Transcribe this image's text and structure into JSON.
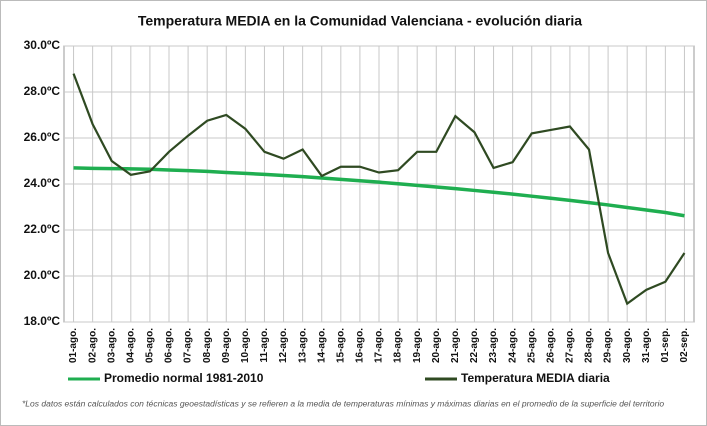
{
  "chart_data": {
    "type": "line",
    "title": "Temperatura  MEDIA en la Comunidad Valenciana - evolución diaria",
    "categories": [
      "01-ago.",
      "02-ago.",
      "03-ago.",
      "04-ago.",
      "05-ago.",
      "06-ago.",
      "07-ago.",
      "08-ago.",
      "09-ago.",
      "10-ago.",
      "11-ago.",
      "12-ago.",
      "13-ago.",
      "14-ago.",
      "15-ago.",
      "16-ago.",
      "17-ago.",
      "18-ago.",
      "19-ago.",
      "20-ago.",
      "21-ago.",
      "22-ago.",
      "23-ago.",
      "24-ago.",
      "25-ago.",
      "26-ago.",
      "27-ago.",
      "28-ago.",
      "29-ago.",
      "30-ago.",
      "31-ago.",
      "01-sep.",
      "02-sep."
    ],
    "series": [
      {
        "name": "Promedio normal 1981-2010",
        "color": "#1fae50",
        "values": [
          24.7,
          24.68,
          24.67,
          24.66,
          24.64,
          24.61,
          24.58,
          24.55,
          24.5,
          24.46,
          24.42,
          24.37,
          24.32,
          24.26,
          24.2,
          24.14,
          24.08,
          24.01,
          23.94,
          23.87,
          23.8,
          23.72,
          23.64,
          23.56,
          23.47,
          23.38,
          23.29,
          23.19,
          23.09,
          22.98,
          22.87,
          22.76,
          22.62
        ]
      },
      {
        "name": "Temperatura MEDIA diaria",
        "color": "#2f4a22",
        "values": [
          28.8,
          26.6,
          25.0,
          24.4,
          24.55,
          25.4,
          26.1,
          26.75,
          27.0,
          26.4,
          25.4,
          25.1,
          25.5,
          24.35,
          24.75,
          24.75,
          24.5,
          24.6,
          25.4,
          25.4,
          26.95,
          26.25,
          24.7,
          24.95,
          26.2,
          26.35,
          26.5,
          25.5,
          21.0,
          18.8,
          19.4,
          19.75,
          21.0
        ]
      }
    ],
    "ylim": [
      18,
      30
    ],
    "yticks": [
      {
        "value": 18,
        "label": "18.0ºC"
      },
      {
        "value": 20,
        "label": "20.0ºC"
      },
      {
        "value": 22,
        "label": "22.0ºC"
      },
      {
        "value": 24,
        "label": "24.0ºC"
      },
      {
        "value": 26,
        "label": "26.0ºC"
      },
      {
        "value": 28,
        "label": "28.0ºC"
      },
      {
        "value": 30,
        "label": "30.0ºC"
      }
    ],
    "grid": true,
    "note": "*Los datos están calculados con técnicas geoestadísticas y se refieren a la media de temperaturas mínimas y máximas diarias en el promedio de la superficie del territorio"
  }
}
